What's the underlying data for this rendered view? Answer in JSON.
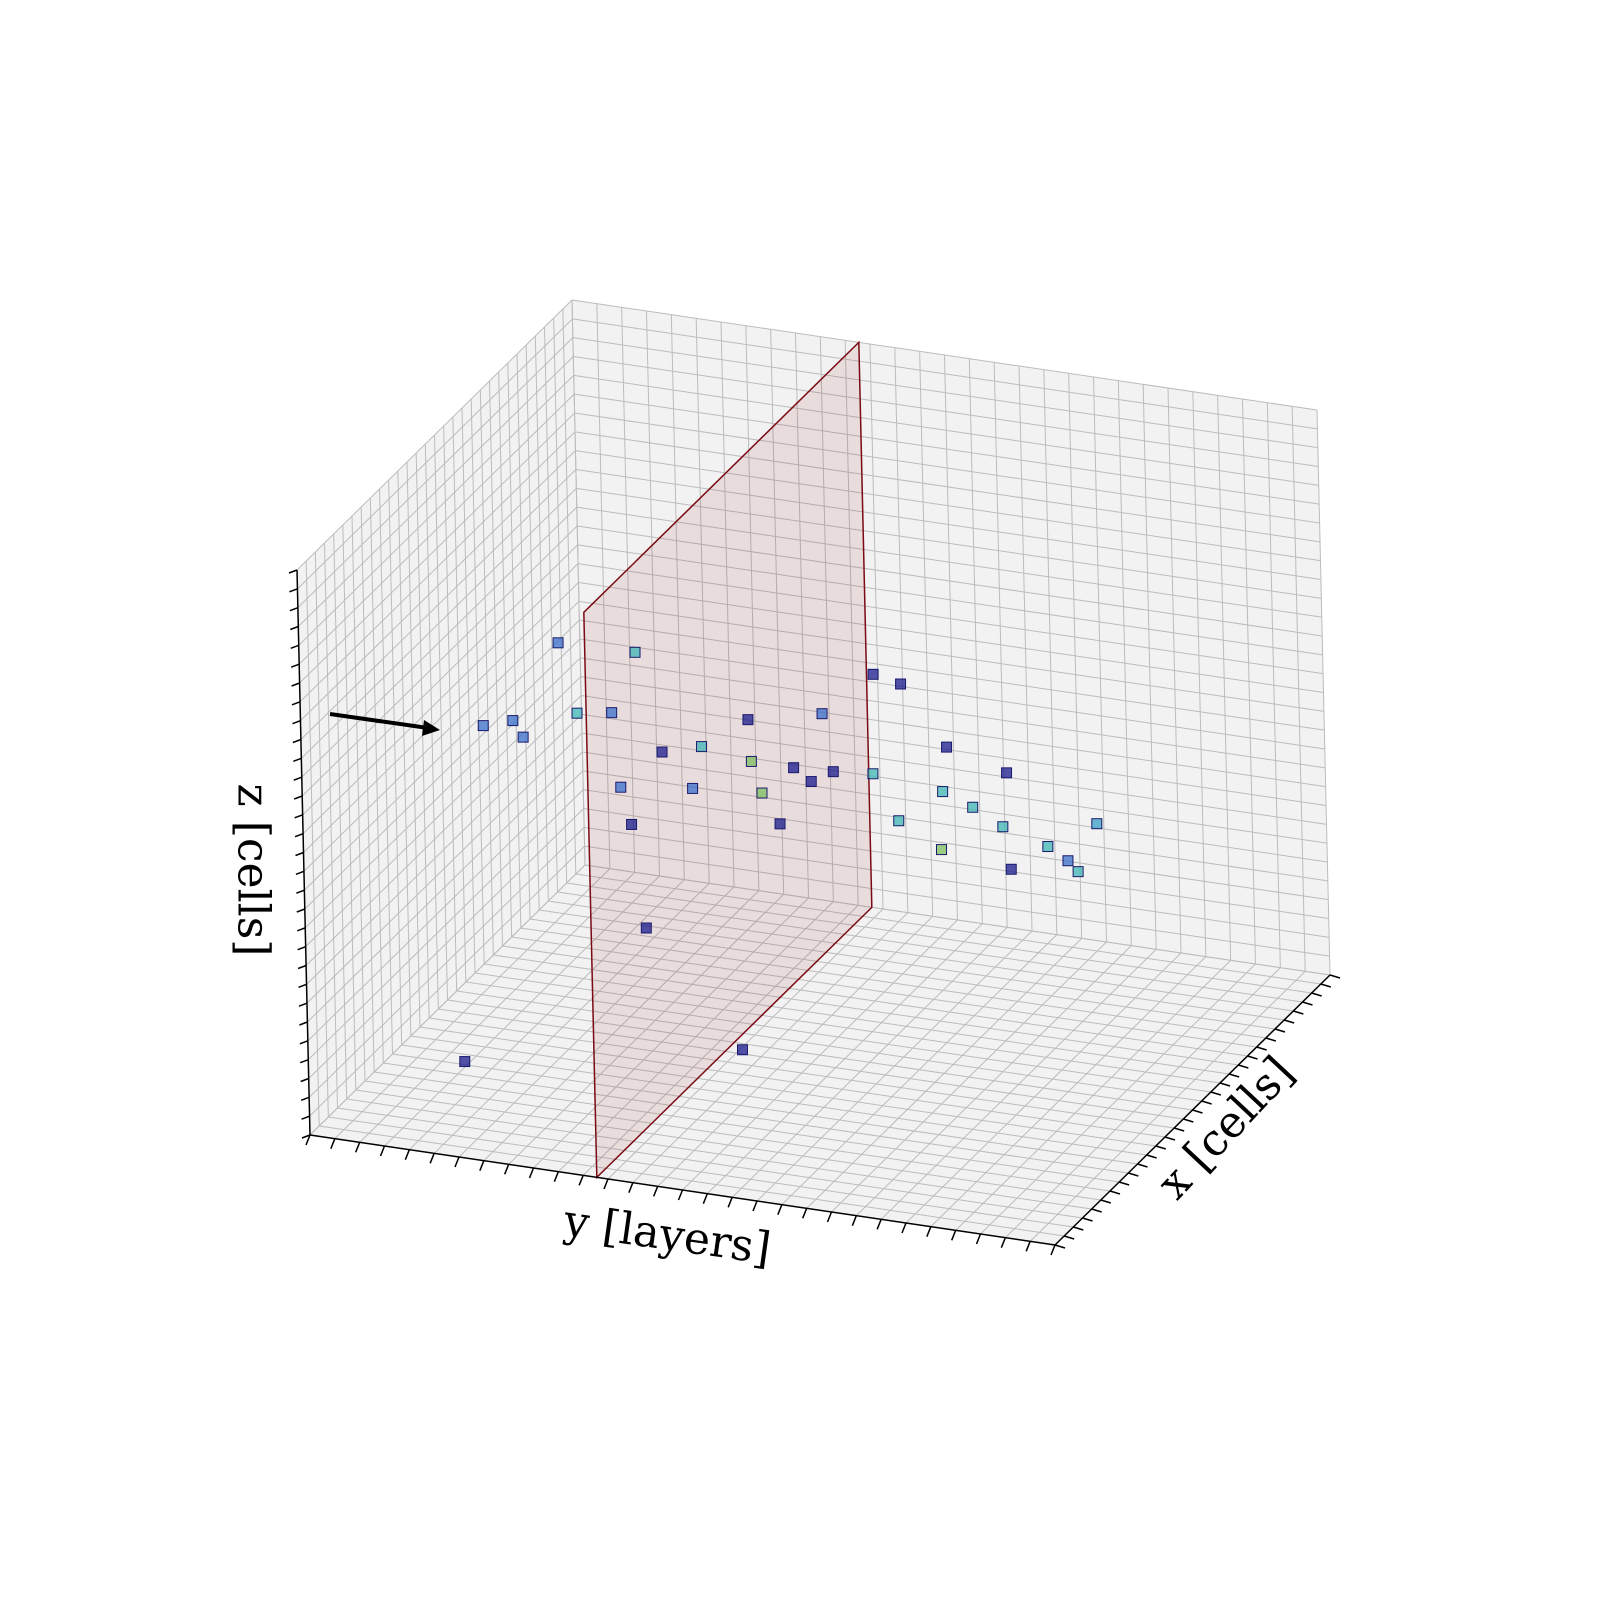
{
  "chart_data": {
    "type": "scatter3d",
    "xlabel": "x [cells]",
    "ylabel": "y [layers]",
    "zlabel": "z [cells]",
    "xlim": [
      0,
      30
    ],
    "ylim": [
      0,
      30
    ],
    "zlim": [
      0,
      30
    ],
    "xticks": [
      0,
      1,
      2,
      3,
      4,
      5,
      6,
      7,
      8,
      9,
      10,
      11,
      12,
      13,
      14,
      15,
      16,
      17,
      18,
      19,
      20,
      21,
      22,
      23,
      24,
      25,
      26,
      27,
      28,
      29,
      30
    ],
    "yticks": [
      0,
      1,
      2,
      3,
      4,
      5,
      6,
      7,
      8,
      9,
      10,
      11,
      12,
      13,
      14,
      15,
      16,
      17,
      18,
      19,
      20,
      21,
      22,
      23,
      24,
      25,
      26,
      27,
      28,
      29,
      30
    ],
    "zticks": [
      0,
      1,
      2,
      3,
      4,
      5,
      6,
      7,
      8,
      9,
      10,
      11,
      12,
      13,
      14,
      15,
      16,
      17,
      18,
      19,
      20,
      21,
      22,
      23,
      24,
      25,
      26,
      27,
      28,
      29,
      30
    ],
    "grid": true,
    "x": [
      15,
      15,
      15,
      15,
      15,
      15,
      15,
      15,
      15,
      15,
      15,
      15,
      15,
      15,
      15,
      15,
      15,
      15,
      15,
      15,
      15,
      15,
      14.4,
      9.3,
      15,
      15,
      15,
      15,
      15,
      15,
      15,
      15,
      15,
      15,
      15,
      15,
      15,
      15
    ],
    "y": [
      1.7,
      3.3,
      4.8,
      7.9,
      6.9,
      8.9,
      10.5,
      12.5,
      14.2,
      15.8,
      17.4,
      20.2,
      21.4,
      22.6,
      24.4,
      25.6,
      26.4,
      18.6,
      17.5,
      22.8,
      7.6,
      8.1,
      12.1,
      2.8,
      13.6,
      12.4,
      15.4,
      20.4,
      22.9,
      20.1,
      5.5,
      7.2,
      10.1,
      12.9,
      14.9,
      18.4,
      25.2,
      2.9
    ],
    "z": [
      14.9,
      14.6,
      19.9,
      20.0,
      16.6,
      14.9,
      15.5,
      15.1,
      15.1,
      15.2,
      15.4,
      15.0,
      14.4,
      13.6,
      12.9,
      11.8,
      14.5,
      20.4,
      20.7,
      16.5,
      10.8,
      5.4,
      0,
      0,
      12.0,
      17.3,
      18.2,
      17.4,
      11.4,
      11.9,
      16.3,
      12.7,
      13.2,
      13.5,
      14.5,
      13.1,
      12.3,
      15.4
    ],
    "colors": [
      "#3a6fc9",
      "#3a6fc9",
      "#3a6fc9",
      "#3fb5b5",
      "#3a6fc9",
      "#1a1a8c",
      "#3fb5b5",
      "#7fbf5f",
      "#1a1a8c",
      "#1a1a8c",
      "#3fb5b5",
      "#3fb5b5",
      "#3fb5b5",
      "#3fb5b5",
      "#3fb5b5",
      "#3fb5b5",
      "#3a9fc9",
      "#1a1a8c",
      "#1a1a8c",
      "#1a1a8c",
      "#1a1a8c",
      "#1a1a8c",
      "#1a1a8c",
      "#1a1a8c",
      "#1a1a8c",
      "#1a1a8c",
      "#3a6fc9",
      "#1a1a8c",
      "#1a1a8c",
      "#7fbf5f",
      "#3fb5b5",
      "#3a6fc9",
      "#3a6fc9",
      "#7fbf5f",
      "#1a1a8c",
      "#3fb5b5",
      "#3a6fc9",
      "#3a6fc9"
    ]
  }
}
